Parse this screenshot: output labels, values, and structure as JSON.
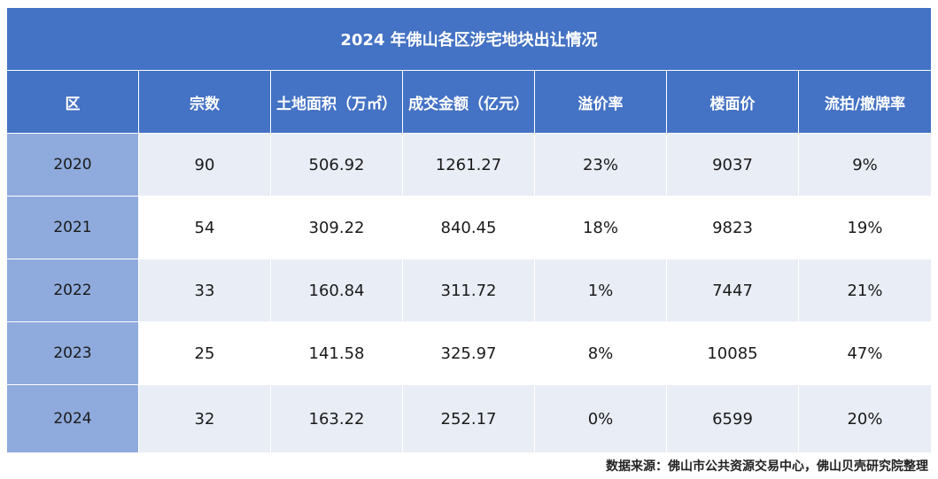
{
  "title": "2024 年佛山各区涉宅地块出让情况",
  "headers": [
    "区",
    "宗数",
    "土地面积（万㎡）",
    "成交金额（亿元）",
    "溢价率",
    "楼面价",
    "流拍/撤牌率"
  ],
  "rows": [
    {
      "year": "2020",
      "count": "90",
      "area": "506.92",
      "amount": "1261.27",
      "premium": "23%",
      "floor_price": "9037",
      "fail_rate": "9%"
    },
    {
      "year": "2021",
      "count": "54",
      "area": "309.22",
      "amount": "840.45",
      "premium": "18%",
      "floor_price": "9823",
      "fail_rate": "19%"
    },
    {
      "year": "2022",
      "count": "33",
      "area": "160.84",
      "amount": "311.72",
      "premium": "1%",
      "floor_price": "7447",
      "fail_rate": "21%"
    },
    {
      "year": "2023",
      "count": "25",
      "area": "141.58",
      "amount": "325.97",
      "premium": "8%",
      "floor_price": "10085",
      "fail_rate": "47%"
    },
    {
      "year": "2024",
      "count": "32",
      "area": "163.22",
      "amount": "252.17",
      "premium": "0%",
      "floor_price": "6599",
      "fail_rate": "20%"
    }
  ],
  "source": "数据来源：佛山市公共资源交易中心，佛山贝壳研究院整理",
  "colors": {
    "header_bg": "#4472c4",
    "year_col_bg": "#8faadc",
    "row_alt_bg": "#e9edf6",
    "row_bg": "#ffffff"
  }
}
